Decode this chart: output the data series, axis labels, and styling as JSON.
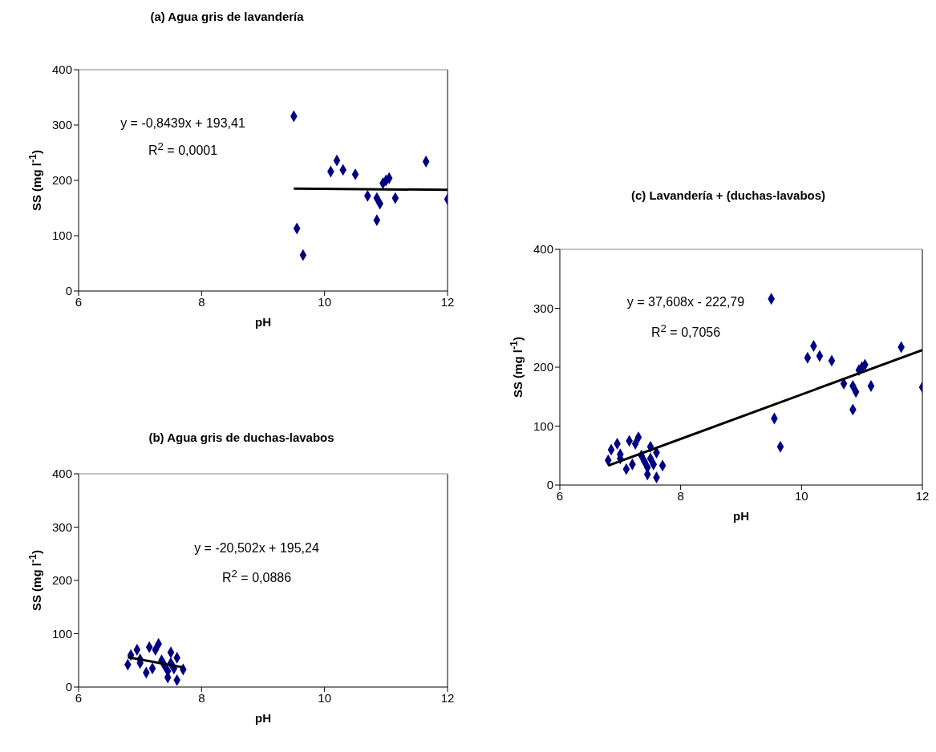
{
  "chart_data": [
    {
      "type": "scatter",
      "title": "(a) Agua gris de lavandería",
      "xlabel": "pH",
      "ylabel": "SS (mg l$^{-1}$)",
      "xlim": [
        6,
        12
      ],
      "xticks": [
        6,
        8,
        10,
        12
      ],
      "ylim": [
        0,
        400
      ],
      "yticks": [
        0,
        100,
        200,
        300,
        400
      ],
      "marker": "diamond",
      "annotations": [
        "y = -0,8439x + 193,41",
        "R$^{2}$ = 0,0001"
      ],
      "series": [
        {
          "type": "scatter",
          "color": "#000080",
          "x": [
            9.5,
            9.55,
            9.65,
            10.1,
            10.2,
            10.3,
            10.5,
            10.7,
            10.85,
            10.85,
            10.9,
            10.95,
            11.0,
            11.05,
            11.15,
            11.65,
            12.0
          ],
          "values": [
            316,
            113,
            65,
            216,
            236,
            219,
            211,
            172,
            168,
            128,
            158,
            195,
            200,
            204,
            168,
            234,
            166
          ]
        },
        {
          "type": "line",
          "color": "#000000",
          "marker": "none",
          "x": [
            9.5,
            12
          ],
          "values": [
            185,
            183
          ]
        }
      ]
    },
    {
      "type": "scatter",
      "title": "(b) Agua gris de duchas-lavabos",
      "xlabel": "pH",
      "ylabel": "SS (mg l$^{-1}$)",
      "xlim": [
        6,
        12
      ],
      "xticks": [
        6,
        8,
        10,
        12
      ],
      "ylim": [
        0,
        400
      ],
      "yticks": [
        0,
        100,
        200,
        300,
        400
      ],
      "marker": "diamond",
      "annotations": [
        "y = -20,502x + 195,24",
        "R$^{2}$ = 0,0886"
      ],
      "series": [
        {
          "type": "scatter",
          "color": "#000080",
          "x": [
            6.8,
            6.85,
            6.95,
            7.0,
            7.0,
            7.1,
            7.15,
            7.2,
            7.25,
            7.3,
            7.35,
            7.4,
            7.45,
            7.45,
            7.5,
            7.5,
            7.55,
            7.6,
            7.6,
            7.7
          ],
          "values": [
            42,
            60,
            70,
            52,
            45,
            27,
            75,
            35,
            70,
            81,
            50,
            40,
            30,
            18,
            65,
            45,
            35,
            55,
            13,
            33
          ]
        },
        {
          "type": "line",
          "color": "#000000",
          "marker": "none",
          "x": [
            6.8,
            7.7
          ],
          "values": [
            56,
            37
          ]
        }
      ]
    },
    {
      "type": "scatter",
      "title": "(c) Lavandería + (duchas-lavabos)",
      "xlabel": "pH",
      "ylabel": "SS (mg l$^{-1}$)",
      "xlim": [
        6,
        12
      ],
      "xticks": [
        6,
        8,
        10,
        12
      ],
      "ylim": [
        0,
        400
      ],
      "yticks": [
        0,
        100,
        200,
        300,
        400
      ],
      "marker": "diamond",
      "annotations": [
        "y = 37,608x - 222,79",
        "R$^{2}$ = 0,7056"
      ],
      "series": [
        {
          "type": "scatter",
          "color": "#000080",
          "x": [
            9.5,
            9.55,
            9.65,
            10.1,
            10.2,
            10.3,
            10.5,
            10.7,
            10.85,
            10.85,
            10.9,
            10.95,
            11.0,
            11.05,
            11.15,
            11.65,
            12.0,
            6.8,
            6.85,
            6.95,
            7.0,
            7.0,
            7.1,
            7.15,
            7.2,
            7.25,
            7.3,
            7.35,
            7.4,
            7.45,
            7.45,
            7.5,
            7.5,
            7.55,
            7.6,
            7.6,
            7.7
          ],
          "values": [
            316,
            113,
            65,
            216,
            236,
            219,
            211,
            172,
            168,
            128,
            158,
            195,
            200,
            204,
            168,
            234,
            166,
            42,
            60,
            70,
            52,
            45,
            27,
            75,
            35,
            70,
            81,
            50,
            40,
            30,
            18,
            65,
            45,
            35,
            55,
            13,
            33
          ]
        },
        {
          "type": "line",
          "color": "#000000",
          "marker": "none",
          "x": [
            6.8,
            12
          ],
          "values": [
            33,
            229
          ]
        }
      ]
    }
  ]
}
